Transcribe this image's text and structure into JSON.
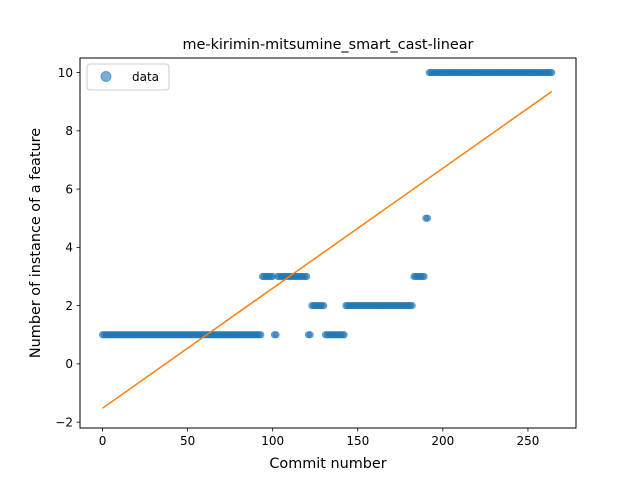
{
  "chart_data": {
    "type": "scatter",
    "title": "me-kirimin-mitsumine_smart_cast-linear",
    "xlabel": "Commit number",
    "ylabel": "Number of instance of a feature",
    "xlim": [
      -13.25,
      278.25
    ],
    "ylim": [
      -2.2,
      10.5
    ],
    "xticks": [
      0,
      50,
      100,
      150,
      200,
      250
    ],
    "yticks": [
      -2,
      0,
      2,
      4,
      6,
      8,
      10
    ],
    "xtick_labels": [
      "0",
      "50",
      "100",
      "150",
      "200",
      "250"
    ],
    "ytick_labels": [
      "−2",
      "0",
      "2",
      "4",
      "6",
      "8",
      "10"
    ],
    "legend": {
      "position": "top-left",
      "entries": [
        "data"
      ]
    },
    "series": [
      {
        "name": "data",
        "kind": "points",
        "color": "#1f77b4",
        "segments": [
          {
            "x_start": 0,
            "x_end": 93,
            "y": 1
          },
          {
            "x_start": 94,
            "x_end": 100,
            "y": 3
          },
          {
            "x_start": 101,
            "x_end": 102,
            "y": 1
          },
          {
            "x_start": 103,
            "x_end": 120,
            "y": 3
          },
          {
            "x_start": 121,
            "x_end": 122,
            "y": 1
          },
          {
            "x_start": 123,
            "x_end": 130,
            "y": 2
          },
          {
            "x_start": 131,
            "x_end": 142,
            "y": 1
          },
          {
            "x_start": 143,
            "x_end": 182,
            "y": 2
          },
          {
            "x_start": 183,
            "x_end": 189,
            "y": 3
          },
          {
            "x_start": 190,
            "x_end": 191,
            "y": 5
          },
          {
            "x_start": 192,
            "x_end": 264,
            "y": 10
          }
        ]
      },
      {
        "name": "",
        "kind": "line",
        "color": "#ff7f0e",
        "x": [
          0,
          264
        ],
        "y": [
          -1.52,
          9.35
        ]
      }
    ]
  }
}
